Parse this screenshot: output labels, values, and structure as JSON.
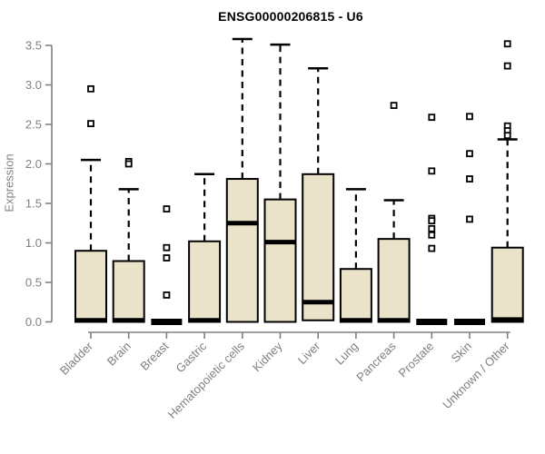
{
  "chart_data": {
    "type": "boxplot",
    "title": "ENSG00000206815 - U6",
    "ylabel": "Expression",
    "xlabel": "",
    "ylim": [
      0,
      3.5
    ],
    "yticks": [
      "0.0",
      "0.5",
      "1.0",
      "1.5",
      "2.0",
      "2.5",
      "3.0",
      "3.5"
    ],
    "grid": false,
    "legend": "none",
    "categories": [
      "Bladder",
      "Brain",
      "Breast",
      "Gastric",
      "Hematopoietic cells",
      "Kidney",
      "Liver",
      "Lung",
      "Pancreas",
      "Prostate",
      "Skin",
      "Unknown / Other"
    ],
    "boxes": [
      {
        "label": "Bladder",
        "q1": 0,
        "median": 0.02,
        "q3": 0.9,
        "whisker_low": 0,
        "whisker_high": 2.05,
        "outliers": [
          2.95,
          2.51
        ],
        "flat": false
      },
      {
        "label": "Brain",
        "q1": 0,
        "median": 0.02,
        "q3": 0.77,
        "whisker_low": 0,
        "whisker_high": 1.68,
        "outliers": [
          2.03,
          2.0
        ],
        "flat": false
      },
      {
        "label": "Breast",
        "q1": 0,
        "median": 0.01,
        "q3": 0.01,
        "whisker_low": 0,
        "whisker_high": 0.01,
        "outliers": [
          1.43,
          0.94,
          0.81,
          0.34
        ],
        "flat": true
      },
      {
        "label": "Gastric",
        "q1": 0,
        "median": 0.02,
        "q3": 1.02,
        "whisker_low": 0,
        "whisker_high": 1.87,
        "outliers": [],
        "flat": false
      },
      {
        "label": "Hematopoietic cells",
        "q1": 0,
        "median": 1.25,
        "q3": 1.81,
        "whisker_low": 0,
        "whisker_high": 3.58,
        "outliers": [],
        "flat": false
      },
      {
        "label": "Kidney",
        "q1": 0,
        "median": 1.01,
        "q3": 1.55,
        "whisker_low": 0,
        "whisker_high": 3.51,
        "outliers": [],
        "flat": false
      },
      {
        "label": "Liver",
        "q1": 0.02,
        "median": 0.25,
        "q3": 1.87,
        "whisker_low": 0,
        "whisker_high": 3.21,
        "outliers": [],
        "flat": false
      },
      {
        "label": "Lung",
        "q1": 0,
        "median": 0.02,
        "q3": 0.67,
        "whisker_low": 0,
        "whisker_high": 1.68,
        "outliers": [],
        "flat": false
      },
      {
        "label": "Pancreas",
        "q1": 0,
        "median": 0.02,
        "q3": 1.05,
        "whisker_low": 0,
        "whisker_high": 1.54,
        "outliers": [
          2.74
        ],
        "flat": false
      },
      {
        "label": "Prostate",
        "q1": 0,
        "median": 0.01,
        "q3": 0.01,
        "whisker_low": 0,
        "whisker_high": 0.01,
        "outliers": [
          2.59,
          1.91,
          1.31,
          1.28,
          1.18,
          1.1,
          0.93
        ],
        "flat": true
      },
      {
        "label": "Skin",
        "q1": 0,
        "median": 0.01,
        "q3": 0.01,
        "whisker_low": 0,
        "whisker_high": 0.01,
        "outliers": [
          2.6,
          2.13,
          1.81,
          1.3
        ],
        "flat": true
      },
      {
        "label": "Unknown / Other",
        "q1": 0,
        "median": 0.03,
        "q3": 0.94,
        "whisker_low": 0,
        "whisker_high": 2.31,
        "outliers": [
          3.52,
          3.24,
          2.48,
          2.42,
          2.36
        ],
        "flat": false
      }
    ]
  },
  "colors": {
    "box_fill": "#EAE3C9",
    "box_border": "#000000",
    "median": "#000000",
    "outlier": "#000000",
    "axis": "#808080",
    "tick_label": "#808080",
    "title": "#000000",
    "background": "#ffffff"
  }
}
